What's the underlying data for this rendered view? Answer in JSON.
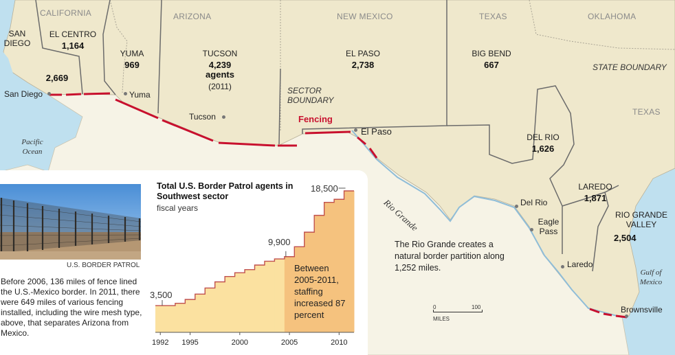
{
  "map": {
    "states": {
      "california": "CALIFORNIA",
      "arizona": "ARIZONA",
      "new_mexico": "NEW MEXICO",
      "texas_north": "TEXAS",
      "oklahoma": "OKLAHOMA",
      "texas": "TEXAS"
    },
    "state_boundary_label": "STATE BOUNDARY",
    "sector_boundary_label": "SECTOR BOUNDARY",
    "fencing_label": "Fencing",
    "sectors": [
      {
        "name": "SAN DIEGO",
        "agents": "2,669"
      },
      {
        "name": "EL CENTRO",
        "agents": "1,164"
      },
      {
        "name": "YUMA",
        "agents": "969"
      },
      {
        "name": "TUCSON",
        "agents": "4,239",
        "unit": "agents",
        "year": "(2011)"
      },
      {
        "name": "EL PASO",
        "agents": "2,738"
      },
      {
        "name": "BIG BEND",
        "agents": "667"
      },
      {
        "name": "DEL RIO",
        "agents": "1,626"
      },
      {
        "name": "LAREDO",
        "agents": "1,871"
      },
      {
        "name": "RIO GRANDE VALLEY",
        "agents": "2,504"
      }
    ],
    "cities": {
      "san_diego": "San Diego",
      "yuma": "Yuma",
      "tucson": "Tucson",
      "el_paso": "El Paso",
      "del_rio": "Del Rio",
      "eagle_pass": "Eagle Pass",
      "laredo": "Laredo",
      "brownsville": "Brownsville"
    },
    "water": {
      "pacific": "Pacific Ocean",
      "gulf": "Gulf of Mexico",
      "river": "Rio Grande"
    },
    "river_note": "The Rio Grande creates a natural border partition along 1,252 miles.",
    "scale": {
      "start": "0",
      "end": "100",
      "unit": "MILES"
    },
    "colors": {
      "us_land": "#efe8cc",
      "mexico_land": "#f6f3e6",
      "water": "#bfe0ef",
      "fence": "#c8102e",
      "boundary": "#666666"
    }
  },
  "inset": {
    "photo_credit": "U.S. BORDER PATROL",
    "caption": "Before 2006, 136 miles of fence lined the U.S.-Mexico border. In 2011, there were 649 miles of various fencing installed, including the wire mesh type, above, that separates Arizona from Mexico."
  },
  "chart_data": {
    "type": "area",
    "title": "Total U.S. Border Patrol agents in Southwest sector",
    "subtitle": "fiscal years",
    "x": [
      1992,
      1993,
      1994,
      1995,
      1996,
      1997,
      1998,
      1999,
      2000,
      2001,
      2002,
      2003,
      2004,
      2005,
      2006,
      2007,
      2008,
      2009,
      2010,
      2011
    ],
    "values": [
      3500,
      3500,
      3800,
      4300,
      5000,
      5800,
      6600,
      7300,
      7800,
      8200,
      8800,
      9300,
      9600,
      9900,
      11200,
      13100,
      15300,
      17000,
      17400,
      18500
    ],
    "xticks": [
      "1992",
      "1995",
      "2000",
      "2005",
      "2010"
    ],
    "annotations": {
      "start": "3,500",
      "mid": "9,900",
      "end": "18,500"
    },
    "highlight_note": "Between 2005-2011, staffing increased 87 percent",
    "highlight_range": [
      2005,
      2011
    ],
    "colors": {
      "area": "#fbe1a0",
      "highlight": "#f5c27e",
      "line": "#c0504d"
    }
  }
}
